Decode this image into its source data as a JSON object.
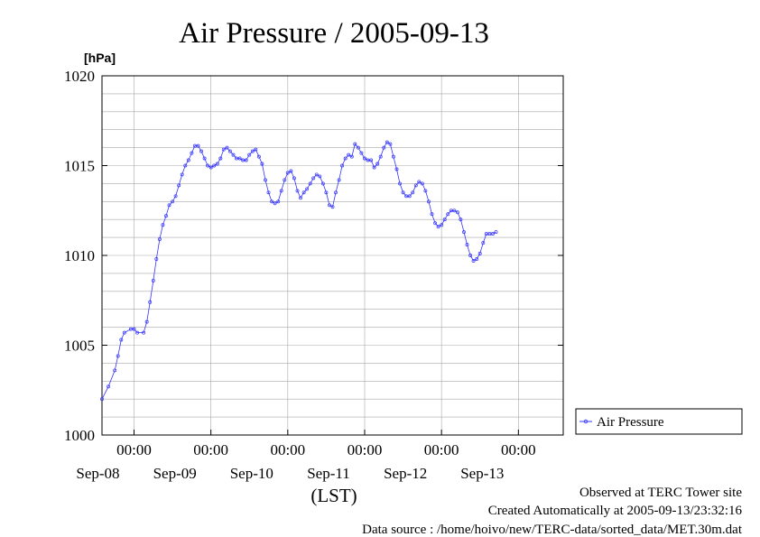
{
  "chart_data": {
    "type": "line",
    "title": "Air Pressure / 2005-09-13",
    "ylabel": "[hPa]",
    "xlabel": "(LST)",
    "ylim": [
      1000,
      1020
    ],
    "yticks": [
      1000,
      1005,
      1010,
      1015,
      1020
    ],
    "x_unit": "hours since 2005-09-07 14:00 LST",
    "x_range": [
      0,
      144
    ],
    "x_ticks": [
      {
        "time": "00:00",
        "date": "Sep-08",
        "hour": 10
      },
      {
        "time": "00:00",
        "date": "Sep-09",
        "hour": 34
      },
      {
        "time": "00:00",
        "date": "Sep-10",
        "hour": 58
      },
      {
        "time": "00:00",
        "date": "Sep-11",
        "hour": 82
      },
      {
        "time": "00:00",
        "date": "Sep-12",
        "hour": 106
      },
      {
        "time": "00:00",
        "date": "Sep-13",
        "hour": 130
      }
    ],
    "grid": true,
    "legend_position": "right",
    "color": "#3333ff",
    "series": [
      {
        "name": "Air Pressure",
        "points": [
          [
            0,
            1002.0
          ],
          [
            2,
            1002.7
          ],
          [
            4,
            1003.6
          ],
          [
            5,
            1004.4
          ],
          [
            6,
            1005.3
          ],
          [
            7,
            1005.7
          ],
          [
            9,
            1005.9
          ],
          [
            10,
            1005.9
          ],
          [
            11,
            1005.7
          ],
          [
            13,
            1005.7
          ],
          [
            14,
            1006.3
          ],
          [
            15,
            1007.4
          ],
          [
            16,
            1008.6
          ],
          [
            17,
            1009.8
          ],
          [
            18,
            1010.9
          ],
          [
            19,
            1011.7
          ],
          [
            20,
            1012.2
          ],
          [
            21,
            1012.8
          ],
          [
            22,
            1013.0
          ],
          [
            23,
            1013.3
          ],
          [
            24,
            1013.9
          ],
          [
            25,
            1014.5
          ],
          [
            26,
            1015.0
          ],
          [
            27,
            1015.3
          ],
          [
            28,
            1015.7
          ],
          [
            29,
            1016.1
          ],
          [
            30,
            1016.1
          ],
          [
            31,
            1015.8
          ],
          [
            32,
            1015.4
          ],
          [
            33,
            1015.0
          ],
          [
            34,
            1014.9
          ],
          [
            35,
            1015.0
          ],
          [
            36,
            1015.1
          ],
          [
            37,
            1015.4
          ],
          [
            38,
            1015.9
          ],
          [
            39,
            1016.0
          ],
          [
            40,
            1015.8
          ],
          [
            41,
            1015.6
          ],
          [
            42,
            1015.4
          ],
          [
            43,
            1015.4
          ],
          [
            44,
            1015.3
          ],
          [
            45,
            1015.3
          ],
          [
            46,
            1015.6
          ],
          [
            47,
            1015.8
          ],
          [
            48,
            1015.9
          ],
          [
            49,
            1015.5
          ],
          [
            50,
            1015.1
          ],
          [
            51,
            1014.2
          ],
          [
            52,
            1013.5
          ],
          [
            53,
            1013.0
          ],
          [
            54,
            1012.9
          ],
          [
            55,
            1013.0
          ],
          [
            56,
            1013.6
          ],
          [
            57,
            1014.2
          ],
          [
            58,
            1014.6
          ],
          [
            59,
            1014.7
          ],
          [
            60,
            1014.3
          ],
          [
            61,
            1013.6
          ],
          [
            62,
            1013.2
          ],
          [
            63,
            1013.5
          ],
          [
            64,
            1013.7
          ],
          [
            65,
            1014.0
          ],
          [
            66,
            1014.3
          ],
          [
            67,
            1014.5
          ],
          [
            68,
            1014.4
          ],
          [
            69,
            1014.0
          ],
          [
            70,
            1013.5
          ],
          [
            71,
            1012.8
          ],
          [
            72,
            1012.7
          ],
          [
            73,
            1013.5
          ],
          [
            74,
            1014.2
          ],
          [
            75,
            1015.0
          ],
          [
            76,
            1015.4
          ],
          [
            77,
            1015.6
          ],
          [
            78,
            1015.5
          ],
          [
            79,
            1016.2
          ],
          [
            80,
            1016.0
          ],
          [
            81,
            1015.7
          ],
          [
            82,
            1015.4
          ],
          [
            83,
            1015.3
          ],
          [
            84,
            1015.3
          ],
          [
            85,
            1014.9
          ],
          [
            86,
            1015.1
          ],
          [
            87,
            1015.5
          ],
          [
            88,
            1016.0
          ],
          [
            89,
            1016.3
          ],
          [
            90,
            1016.2
          ],
          [
            91,
            1015.5
          ],
          [
            92,
            1014.8
          ],
          [
            93,
            1014.0
          ],
          [
            94,
            1013.5
          ],
          [
            95,
            1013.3
          ],
          [
            96,
            1013.3
          ],
          [
            97,
            1013.5
          ],
          [
            98,
            1013.9
          ],
          [
            99,
            1014.1
          ],
          [
            100,
            1014.0
          ],
          [
            101,
            1013.6
          ],
          [
            102,
            1013.0
          ],
          [
            103,
            1012.3
          ],
          [
            104,
            1011.8
          ],
          [
            105,
            1011.6
          ],
          [
            106,
            1011.7
          ],
          [
            107,
            1012.0
          ],
          [
            108,
            1012.3
          ],
          [
            109,
            1012.5
          ],
          [
            110,
            1012.5
          ],
          [
            111,
            1012.4
          ],
          [
            112,
            1012.0
          ],
          [
            113,
            1011.3
          ],
          [
            114,
            1010.6
          ],
          [
            115,
            1010.0
          ],
          [
            116,
            1009.7
          ],
          [
            117,
            1009.8
          ],
          [
            118,
            1010.1
          ],
          [
            119,
            1010.7
          ],
          [
            120,
            1011.2
          ],
          [
            121,
            1011.2
          ],
          [
            122,
            1011.2
          ],
          [
            123,
            1011.3
          ]
        ]
      }
    ]
  },
  "footer": {
    "observed": "Observed at TERC Tower site",
    "created": "Created Automatically at 2005-09-13/23:32:16",
    "source": "Data source : /home/hoivo/new/TERC-data/sorted_data/MET.30m.dat"
  }
}
